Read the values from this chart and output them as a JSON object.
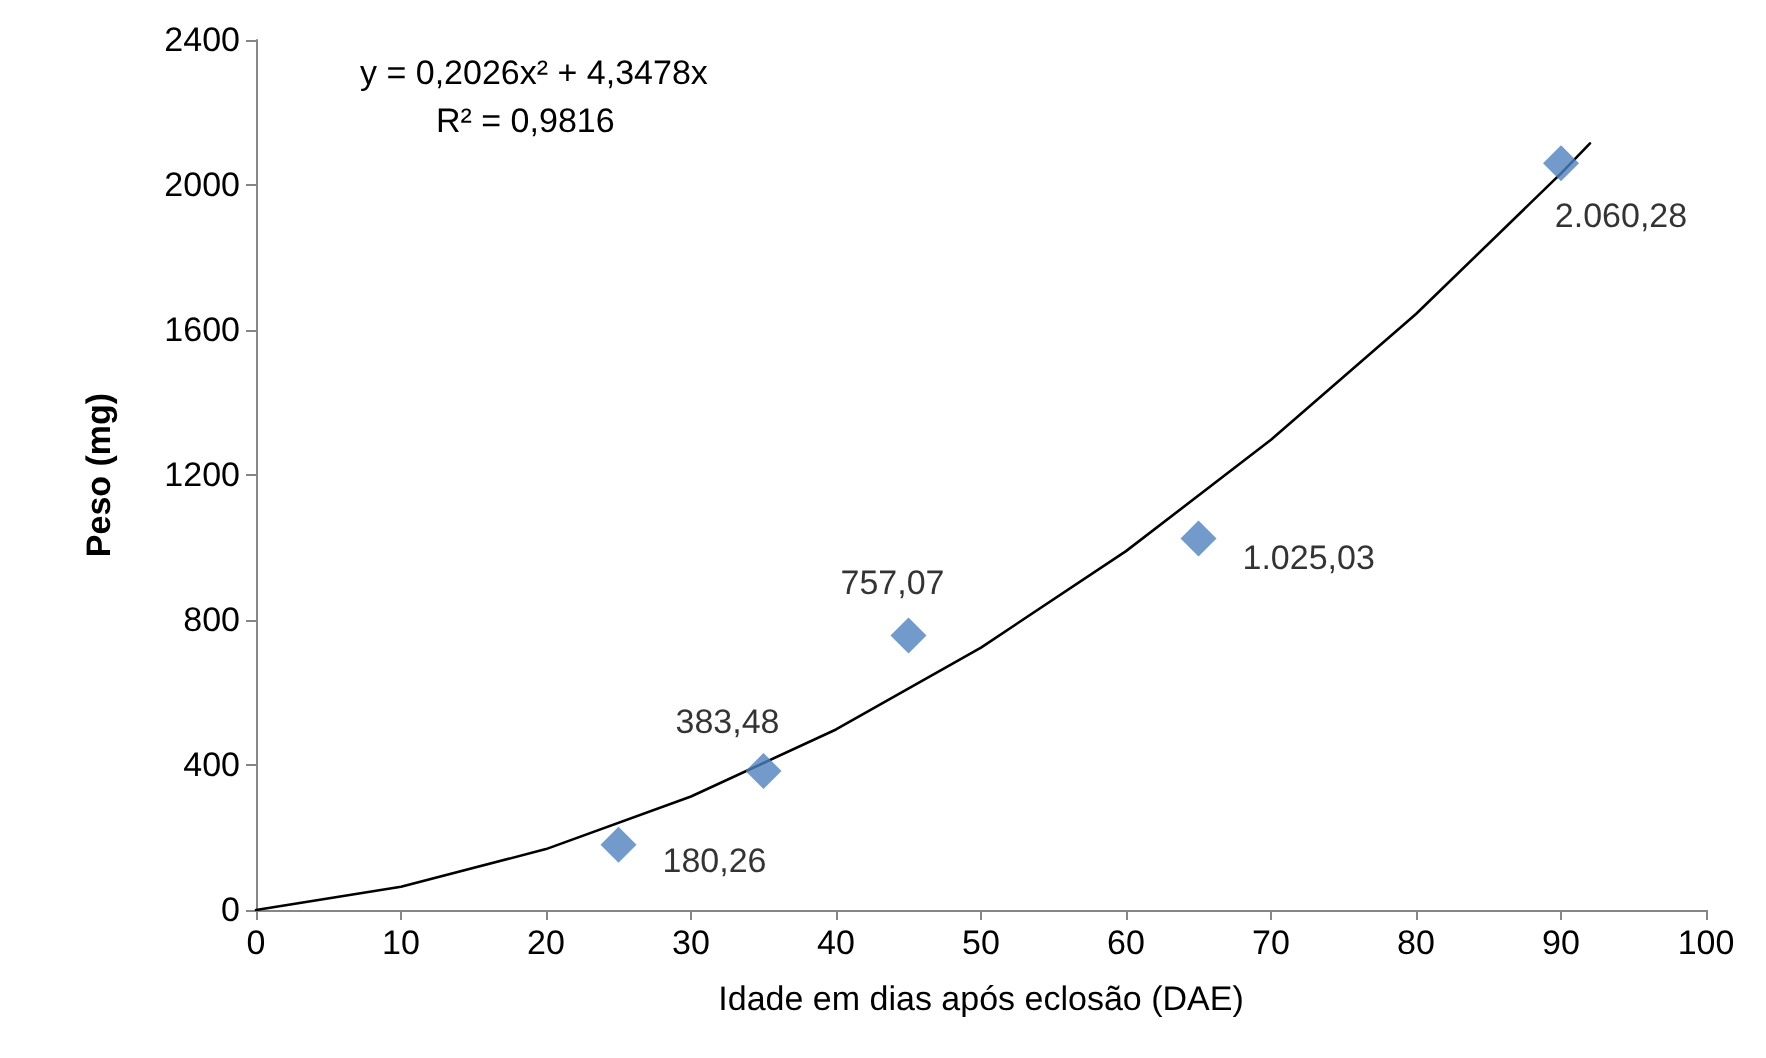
{
  "chart_data": {
    "type": "scatter",
    "xlabel": "Idade em dias após eclosão (DAE)",
    "ylabel": "Peso (mg)",
    "xlim": [
      0,
      100
    ],
    "xticks": [
      0,
      10,
      20,
      30,
      40,
      50,
      60,
      70,
      80,
      90,
      100
    ],
    "ylim": [
      0,
      2400
    ],
    "yticks": [
      0,
      400,
      800,
      1200,
      1600,
      2000,
      2400
    ],
    "grid": false,
    "marker": "diamond",
    "annotations": [
      "y = 0,2026x² + 4,3478x",
      "R² = 0,9816"
    ],
    "series": [
      {
        "color": "#4f81bd",
        "x": [
          25,
          35,
          45,
          65,
          90
        ],
        "values": [
          180.26,
          383.48,
          757.07,
          1025.03,
          2060.28
        ],
        "value_labels": [
          "180,26",
          "383,48",
          "757,07",
          "1.025,03",
          "2.060,28"
        ]
      },
      {
        "type": "line",
        "color": "#000000",
        "marker": "none",
        "line_style": "solid",
        "x": [
          0,
          10,
          20,
          30,
          40,
          50,
          60,
          70,
          80,
          90,
          92
        ],
        "values": [
          0,
          64,
          168,
          313,
          498,
          724,
          990,
          1297,
          1644,
          2032,
          2115
        ]
      }
    ]
  }
}
